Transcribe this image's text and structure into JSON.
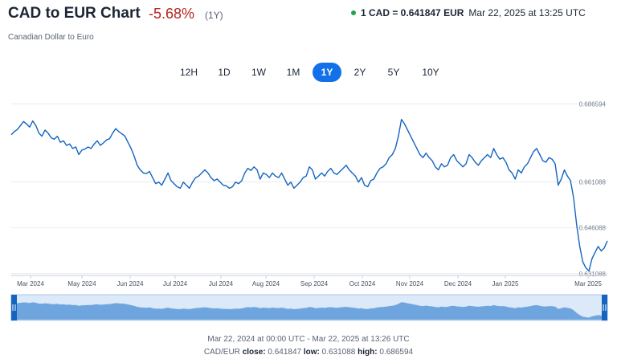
{
  "header": {
    "title": "CAD to EUR Chart",
    "change": "-5.68%",
    "period": "(1Y)",
    "subtitle": "Canadian Dollar to Euro",
    "quote_rate": "1 CAD = 0.641847 EUR",
    "quote_time": "Mar 22, 2025 at 13:25 UTC"
  },
  "tabs": [
    {
      "label": "12H",
      "active": false
    },
    {
      "label": "1D",
      "active": false
    },
    {
      "label": "1W",
      "active": false
    },
    {
      "label": "1M",
      "active": false
    },
    {
      "label": "1Y",
      "active": true
    },
    {
      "label": "2Y",
      "active": false
    },
    {
      "label": "5Y",
      "active": false
    },
    {
      "label": "10Y",
      "active": false
    }
  ],
  "colors": {
    "line": "#1565c0",
    "navigator_fill": "#6fa5df",
    "navigator_bg": "#dbe9f8",
    "active_tab": "#1271e8",
    "negative": "#b3261e",
    "live_dot": "#1fa64a"
  },
  "chart_data": {
    "type": "line",
    "title": "",
    "xlabel": "",
    "ylabel": "",
    "y_ticks": [
      "0.686594",
      "0.661088",
      "0.646088",
      "0.631088"
    ],
    "y_tick_values": [
      0.686594,
      0.661088,
      0.646088,
      0.631088
    ],
    "x_ticks": [
      "Mar 2024",
      "May 2024",
      "Jun 2024",
      "Jul 2024",
      "Jul 2024",
      "Aug 2024",
      "Sep 2024",
      "Oct 2024",
      "Nov 2024",
      "Dec 2024",
      "Jan 2025",
      "Mar 2025"
    ],
    "ylim": [
      0.6305,
      0.6885
    ],
    "grid": true,
    "series": [
      {
        "values": [
          0.6765,
          0.6775,
          0.6782,
          0.6795,
          0.6808,
          0.68,
          0.679,
          0.681,
          0.6795,
          0.677,
          0.676,
          0.678,
          0.677,
          0.6755,
          0.675,
          0.676,
          0.674,
          0.6745,
          0.673,
          0.6735,
          0.672,
          0.6725,
          0.67,
          0.6715,
          0.6718,
          0.6725,
          0.672,
          0.6735,
          0.6745,
          0.673,
          0.6738,
          0.6748,
          0.6752,
          0.677,
          0.6785,
          0.6775,
          0.6768,
          0.676,
          0.674,
          0.672,
          0.6695,
          0.6665,
          0.665,
          0.664,
          0.6638,
          0.6645,
          0.6625,
          0.6605,
          0.661,
          0.66,
          0.662,
          0.664,
          0.6615,
          0.6605,
          0.6595,
          0.659,
          0.661,
          0.66,
          0.659,
          0.661,
          0.6625,
          0.663,
          0.664,
          0.665,
          0.664,
          0.6625,
          0.6615,
          0.662,
          0.661,
          0.66,
          0.6598,
          0.659,
          0.6595,
          0.661,
          0.6605,
          0.6615,
          0.664,
          0.6655,
          0.6648,
          0.666,
          0.665,
          0.662,
          0.664,
          0.6635,
          0.6625,
          0.664,
          0.663,
          0.6625,
          0.664,
          0.662,
          0.66,
          0.661,
          0.659,
          0.66,
          0.661,
          0.6625,
          0.663,
          0.666,
          0.665,
          0.662,
          0.663,
          0.664,
          0.663,
          0.6645,
          0.6655,
          0.664,
          0.6635,
          0.6645,
          0.6655,
          0.6665,
          0.665,
          0.664,
          0.663,
          0.661,
          0.6625,
          0.66,
          0.6595,
          0.6615,
          0.662,
          0.664,
          0.6655,
          0.666,
          0.667,
          0.669,
          0.67,
          0.672,
          0.676,
          0.6815,
          0.68,
          0.678,
          0.676,
          0.674,
          0.672,
          0.67,
          0.669,
          0.6705,
          0.669,
          0.668,
          0.666,
          0.665,
          0.667,
          0.666,
          0.6665,
          0.669,
          0.67,
          0.668,
          0.667,
          0.666,
          0.667,
          0.67,
          0.669,
          0.6675,
          0.6665,
          0.668,
          0.669,
          0.67,
          0.669,
          0.672,
          0.67,
          0.6685,
          0.669,
          0.6675,
          0.665,
          0.664,
          0.662,
          0.665,
          0.664,
          0.666,
          0.667,
          0.669,
          0.671,
          0.672,
          0.67,
          0.668,
          0.6675,
          0.669,
          0.6685,
          0.667,
          0.66,
          0.662,
          0.665,
          0.663,
          0.6615,
          0.656,
          0.647,
          0.64,
          0.635,
          0.633,
          0.632,
          0.636,
          0.638,
          0.64,
          0.6385,
          0.6395,
          0.6418
        ]
      }
    ]
  },
  "footer": {
    "range": "Mar 22, 2024 at 00:00 UTC - Mar 22, 2025 at 13:26 UTC",
    "pair": "CAD/EUR",
    "close_label": "close:",
    "close_value": "0.641847",
    "low_label": "low:",
    "low_value": "0.631088",
    "high_label": "high:",
    "high_value": "0.686594"
  }
}
